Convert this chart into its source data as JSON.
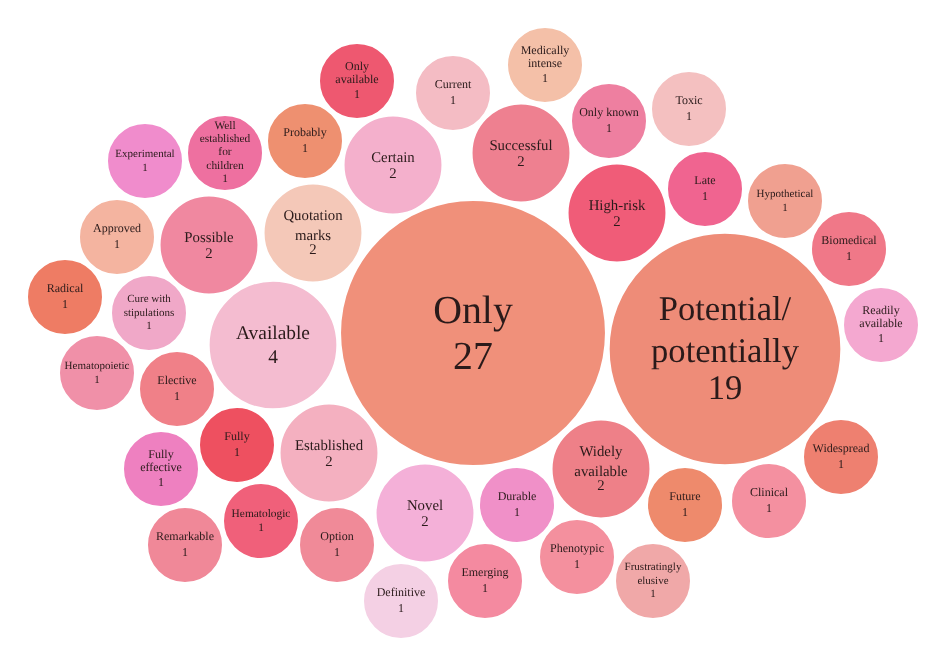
{
  "chart_data": {
    "type": "other",
    "data_labels": true,
    "categories": [
      "Only",
      "Potential/potentially",
      "Available",
      "Quotation marks",
      "High-risk",
      "Established",
      "Widely available",
      "Certain",
      "Successful",
      "Novel",
      "Possible",
      "Durable",
      "Fully",
      "Elective",
      "Late",
      "Future",
      "Probably",
      "Cure with stipulations",
      "Only known",
      "Option",
      "Phenotypic",
      "Hematologic",
      "Current",
      "Emerging",
      "Well established for children",
      "Hypothetical",
      "Fully effective",
      "Clinical",
      "Hematopoietic",
      "Only available",
      "Approved",
      "Toxic",
      "Biomedical",
      "Medically intense",
      "Definitive",
      "Frustratingly elusive",
      "Readily available",
      "Widespread",
      "Radical",
      "Experimental",
      "Remarkable"
    ],
    "values": [
      27,
      19,
      4,
      2,
      2,
      2,
      2,
      2,
      2,
      2,
      2,
      1,
      1,
      1,
      1,
      1,
      1,
      1,
      1,
      1,
      1,
      1,
      1,
      1,
      1,
      1,
      1,
      1,
      1,
      1,
      1,
      1,
      1,
      1,
      1,
      1,
      1,
      1,
      1,
      1,
      1
    ],
    "colors": [
      "#f0907a",
      "#ee8c78",
      "#f4bcd0",
      "#f4c8b8",
      "#f05c78",
      "#f4b0c0",
      "#ee8088",
      "#f4b0cc",
      "#ee8090",
      "#f4b0d8",
      "#f088a0",
      "#f090c8",
      "#ee5060",
      "#f08088",
      "#f06490",
      "#ee8a6c",
      "#ee9070",
      "#f0a8c8",
      "#ee7fa0",
      "#f08a98",
      "#f4909e",
      "#f0607a",
      "#f4bcc4",
      "#f48aa0",
      "#ee70a0",
      "#f0a090",
      "#ee80c0",
      "#f490a0",
      "#f090a8",
      "#ee5870",
      "#f4b4a0",
      "#f4c0c0",
      "#f07888",
      "#f4c0a8",
      "#f4d0e4",
      "#f0a8a8",
      "#f4a8d0",
      "#ee8070",
      "#ee7c64",
      "#f08ccc",
      "#f08898"
    ]
  }
}
